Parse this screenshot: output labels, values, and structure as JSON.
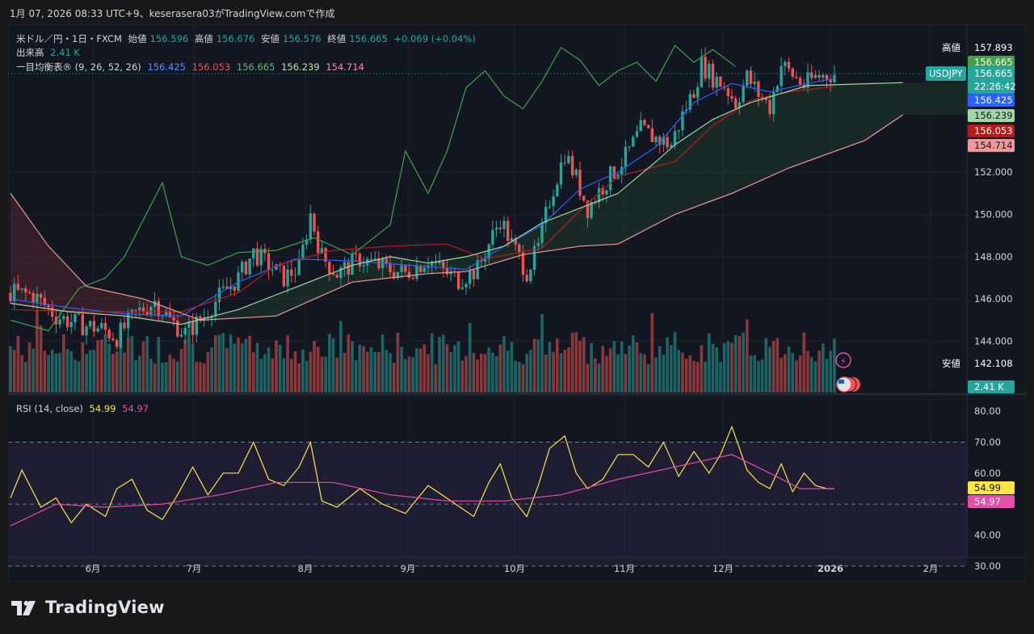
{
  "header": {
    "note": "1月 07, 2026 08:33 UTC+9、keserasera03がTradingView.comで作成"
  },
  "legend": {
    "symbol": "米ドル／円・1日・FXCM",
    "open_label": "始値",
    "open": "156.596",
    "high_label": "高値",
    "high": "156.676",
    "low_label": "安値",
    "low": "156.576",
    "close_label": "終値",
    "close": "156.665",
    "change": "+0.069 (+0.04%)",
    "volume_label": "出来高",
    "volume": "2.41 K",
    "ichimoku_label": "一目均衡表® (9, 26, 52, 26)",
    "ichi_values": [
      "156.425",
      "156.053",
      "156.665",
      "156.239",
      "154.714"
    ],
    "rsi_label": "RSI (14, close)",
    "rsi_value": "54.99",
    "rsi_ma_value": "54.97"
  },
  "brand": {
    "name": "TradingView"
  },
  "colors": {
    "background": "#181818",
    "pane": "#131722",
    "up": "#26a69a",
    "down": "#ef5350",
    "tenkan": "#2962ff",
    "kijun": "#b71c1c",
    "chikou": "#43a047",
    "span_a": "#a5d6a7",
    "span_b": "#ef9a9a",
    "rsi": "#f9e547",
    "rsi_ma": "#e64ea8"
  },
  "chart_data": [
    {
      "type": "candlestick",
      "title": "米ドル／円・1日・FXCM",
      "y_axis_ticks": [
        "144.000",
        "146.000",
        "148.000",
        "150.000",
        "152.000"
      ],
      "y_range": [
        141.5,
        159.0
      ],
      "x_labels": [
        "6月",
        "7月",
        "8月",
        "9月",
        "10月",
        "11月",
        "12月",
        "2026",
        "2月"
      ],
      "price_path": [
        [
          0,
          146.3
        ],
        [
          6,
          146.2
        ],
        [
          12,
          145.2
        ],
        [
          18,
          144.8
        ],
        [
          24,
          144.6
        ],
        [
          28,
          144.2
        ],
        [
          33,
          145.3
        ],
        [
          38,
          145.9
        ],
        [
          42,
          145.0
        ],
        [
          46,
          144.4
        ],
        [
          50,
          145.0
        ],
        [
          55,
          146.1
        ],
        [
          60,
          147.0
        ],
        [
          64,
          148.2
        ],
        [
          68,
          147.6
        ],
        [
          72,
          147.0
        ],
        [
          76,
          147.5
        ],
        [
          79,
          150.0
        ],
        [
          82,
          148.0
        ],
        [
          86,
          147.2
        ],
        [
          92,
          147.9
        ],
        [
          98,
          147.5
        ],
        [
          104,
          147.2
        ],
        [
          110,
          147.9
        ],
        [
          114,
          147.3
        ],
        [
          118,
          146.9
        ],
        [
          123,
          147.4
        ],
        [
          126,
          148.6
        ],
        [
          129,
          149.8
        ],
        [
          132,
          148.6
        ],
        [
          136,
          147.3
        ],
        [
          139,
          148.4
        ],
        [
          142,
          150.7
        ],
        [
          146,
          152.9
        ],
        [
          149,
          151.7
        ],
        [
          152,
          150.3
        ],
        [
          155,
          151.1
        ],
        [
          158,
          151.8
        ],
        [
          162,
          152.7
        ],
        [
          166,
          154.0
        ],
        [
          170,
          153.6
        ],
        [
          174,
          153.3
        ],
        [
          177,
          154.7
        ],
        [
          180,
          155.9
        ],
        [
          182,
          157.1
        ],
        [
          185,
          156.5
        ],
        [
          188,
          156.1
        ],
        [
          191,
          155.3
        ],
        [
          194,
          156.5
        ],
        [
          197,
          155.7
        ],
        [
          200,
          155.1
        ],
        [
          203,
          157.1
        ],
        [
          206,
          156.6
        ],
        [
          209,
          156.1
        ],
        [
          212,
          156.5
        ],
        [
          215,
          156.6
        ],
        [
          217,
          156.665
        ]
      ],
      "series": [
        {
          "name": "Tenkan",
          "value": "156.425",
          "values": [
            [
              0,
              146.0
            ],
            [
              15,
              145.6
            ],
            [
              30,
              145.3
            ],
            [
              45,
              145.2
            ],
            [
              60,
              146.8
            ],
            [
              75,
              147.9
            ],
            [
              90,
              147.8
            ],
            [
              105,
              147.6
            ],
            [
              120,
              147.4
            ],
            [
              130,
              148.5
            ],
            [
              140,
              149.5
            ],
            [
              150,
              151.2
            ],
            [
              160,
              152.0
            ],
            [
              170,
              153.2
            ],
            [
              180,
              155.3
            ],
            [
              190,
              156.2
            ],
            [
              200,
              155.8
            ],
            [
              210,
              156.2
            ],
            [
              217,
              156.425
            ]
          ]
        },
        {
          "name": "Kijun",
          "value": "156.053",
          "values": [
            [
              0,
              145.5
            ],
            [
              20,
              145.4
            ],
            [
              45,
              145.4
            ],
            [
              60,
              146.3
            ],
            [
              70,
              147.6
            ],
            [
              85,
              148.3
            ],
            [
              100,
              148.5
            ],
            [
              115,
              148.6
            ],
            [
              125,
              147.9
            ],
            [
              140,
              148.4
            ],
            [
              150,
              150.2
            ],
            [
              160,
              151.8
            ],
            [
              175,
              152.5
            ],
            [
              185,
              154.2
            ],
            [
              195,
              155.4
            ],
            [
              205,
              155.8
            ],
            [
              217,
              156.053
            ]
          ]
        },
        {
          "name": "Chikou",
          "value": "156.665",
          "values": [
            [
              0,
              145.0
            ],
            [
              10,
              144.5
            ],
            [
              18,
              146.5
            ],
            [
              25,
              147.0
            ],
            [
              30,
              148.0
            ],
            [
              40,
              151.5
            ],
            [
              45,
              148.0
            ],
            [
              52,
              147.6
            ],
            [
              60,
              148.2
            ],
            [
              70,
              148.3
            ],
            [
              80,
              148.9
            ],
            [
              90,
              148.1
            ],
            [
              100,
              149.5
            ],
            [
              104,
              153.0
            ],
            [
              110,
              151.0
            ],
            [
              115,
              153.0
            ],
            [
              120,
              156.0
            ],
            [
              125,
              156.8
            ],
            [
              130,
              155.6
            ],
            [
              135,
              155.0
            ],
            [
              140,
              156.3
            ],
            [
              145,
              157.9
            ],
            [
              150,
              157.3
            ],
            [
              155,
              156.1
            ],
            [
              160,
              156.8
            ],
            [
              165,
              157.2
            ],
            [
              170,
              156.3
            ],
            [
              175,
              158.0
            ],
            [
              180,
              157.2
            ],
            [
              185,
              157.8
            ],
            [
              191,
              157.0
            ]
          ]
        },
        {
          "name": "Senkou A",
          "value": "156.239",
          "values": [
            [
              0,
              145.8
            ],
            [
              15,
              145.4
            ],
            [
              30,
              145.2
            ],
            [
              45,
              144.8
            ],
            [
              60,
              145.5
            ],
            [
              70,
              146.2
            ],
            [
              80,
              146.9
            ],
            [
              90,
              147.6
            ],
            [
              100,
              148.0
            ],
            [
              110,
              147.7
            ],
            [
              120,
              148.0
            ],
            [
              130,
              148.5
            ],
            [
              140,
              149.6
            ],
            [
              150,
              150.3
            ],
            [
              160,
              151.0
            ],
            [
              170,
              152.5
            ],
            [
              175,
              153.3
            ],
            [
              185,
              154.5
            ],
            [
              195,
              155.3
            ],
            [
              210,
              156.1
            ],
            [
              235,
              156.239
            ]
          ]
        },
        {
          "name": "Senkou B",
          "value": "154.714",
          "values": [
            [
              0,
              151.0
            ],
            [
              10,
              148.5
            ],
            [
              20,
              146.6
            ],
            [
              35,
              146.0
            ],
            [
              50,
              145.0
            ],
            [
              70,
              145.2
            ],
            [
              90,
              146.8
            ],
            [
              110,
              147.2
            ],
            [
              120,
              147.3
            ],
            [
              135,
              148.1
            ],
            [
              150,
              148.5
            ],
            [
              160,
              148.6
            ],
            [
              175,
              150.0
            ],
            [
              190,
              151.0
            ],
            [
              205,
              152.2
            ],
            [
              225,
              153.5
            ],
            [
              235,
              154.714
            ]
          ]
        }
      ]
    },
    {
      "type": "bar",
      "title": "出来高",
      "values_note": "Volume bars, latest 2.41 K",
      "latest": "2.41 K"
    },
    {
      "type": "line",
      "title": "RSI (14, close)",
      "y_axis_ticks": [
        "30.00",
        "40.00",
        "50.00",
        "60.00",
        "70.00",
        "80.00"
      ],
      "y_range": [
        30,
        80
      ],
      "series": [
        {
          "name": "RSI",
          "value": "54.99",
          "values": [
            [
              0,
              52
            ],
            [
              3,
              61
            ],
            [
              8,
              49
            ],
            [
              12,
              52
            ],
            [
              16,
              44
            ],
            [
              20,
              50
            ],
            [
              25,
              46
            ],
            [
              28,
              55
            ],
            [
              32,
              58
            ],
            [
              36,
              48
            ],
            [
              40,
              45
            ],
            [
              44,
              53
            ],
            [
              48,
              62
            ],
            [
              52,
              53
            ],
            [
              56,
              60
            ],
            [
              60,
              60
            ],
            [
              64,
              70
            ],
            [
              68,
              58
            ],
            [
              72,
              56
            ],
            [
              76,
              62
            ],
            [
              79,
              70
            ],
            [
              82,
              51
            ],
            [
              86,
              49
            ],
            [
              92,
              55
            ],
            [
              98,
              50
            ],
            [
              104,
              47
            ],
            [
              110,
              56
            ],
            [
              116,
              51
            ],
            [
              122,
              46
            ],
            [
              126,
              57
            ],
            [
              129,
              63
            ],
            [
              132,
              52
            ],
            [
              136,
              46
            ],
            [
              139,
              56
            ],
            [
              142,
              68
            ],
            [
              146,
              72
            ],
            [
              149,
              60
            ],
            [
              152,
              55
            ],
            [
              156,
              58
            ],
            [
              160,
              66
            ],
            [
              164,
              66
            ],
            [
              168,
              62
            ],
            [
              172,
              70
            ],
            [
              176,
              59
            ],
            [
              180,
              67
            ],
            [
              184,
              60
            ],
            [
              187,
              66
            ],
            [
              190,
              75
            ],
            [
              194,
              61
            ],
            [
              197,
              57
            ],
            [
              200,
              55
            ],
            [
              203,
              63
            ],
            [
              206,
              54
            ],
            [
              209,
              60
            ],
            [
              212,
              56
            ],
            [
              215,
              55
            ],
            [
              217,
              54.99
            ]
          ]
        },
        {
          "name": "MA",
          "value": "54.97",
          "values": [
            [
              0,
              43
            ],
            [
              12,
              50
            ],
            [
              25,
              49
            ],
            [
              40,
              50
            ],
            [
              55,
              53
            ],
            [
              70,
              57
            ],
            [
              85,
              57
            ],
            [
              100,
              53
            ],
            [
              115,
              51
            ],
            [
              130,
              51
            ],
            [
              145,
              53
            ],
            [
              160,
              58
            ],
            [
              175,
              62
            ],
            [
              190,
              66
            ],
            [
              200,
              60
            ],
            [
              208,
              55
            ],
            [
              217,
              54.97
            ]
          ]
        }
      ]
    }
  ]
}
